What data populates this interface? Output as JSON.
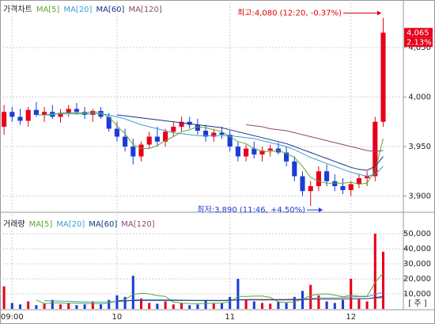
{
  "chart_data": [
    {
      "type": "candlestick",
      "title": "가격차트",
      "categories": [
        null,
        "09:00",
        null,
        null,
        null,
        null,
        null,
        null,
        null,
        null,
        null,
        null,
        null,
        null,
        "10",
        null,
        null,
        null,
        null,
        null,
        null,
        null,
        null,
        null,
        null,
        null,
        null,
        null,
        "11",
        null,
        null,
        null,
        null,
        null,
        null,
        null,
        null,
        null,
        null,
        null,
        null,
        null,
        null,
        "12",
        null,
        null,
        null,
        null,
        null,
        null
      ],
      "open": [
        3970,
        3985,
        3980,
        3976,
        3987,
        3982,
        3985,
        3980,
        3984,
        3988,
        3985,
        3982,
        3986,
        3980,
        3968,
        3960,
        3950,
        3940,
        3952,
        3960,
        3955,
        3965,
        3970,
        3975,
        3972,
        3966,
        3960,
        3964,
        3962,
        3950,
        3940,
        3948,
        3942,
        3946,
        3948,
        3944,
        3935,
        3920,
        3905,
        3910,
        3925,
        3915,
        3910,
        3906,
        3912,
        3918,
        3920,
        3975,
        null,
        null
      ],
      "high": [
        3992,
        3990,
        3988,
        3990,
        3995,
        3990,
        3992,
        3988,
        3992,
        3994,
        3990,
        3988,
        3990,
        3984,
        3975,
        3968,
        3958,
        3955,
        3965,
        3970,
        3968,
        3975,
        3980,
        3980,
        3978,
        3972,
        3968,
        3970,
        3966,
        3955,
        3952,
        3955,
        3950,
        3952,
        3954,
        3950,
        3940,
        3925,
        3915,
        3930,
        3932,
        3922,
        3918,
        3915,
        3922,
        3925,
        3980,
        4080,
        null,
        null
      ],
      "low": [
        3962,
        3975,
        3972,
        3970,
        3980,
        3975,
        3978,
        3974,
        3980,
        3982,
        3978,
        3975,
        3978,
        3965,
        3955,
        3945,
        3932,
        3935,
        3948,
        3950,
        3950,
        3960,
        3965,
        3968,
        3962,
        3955,
        3955,
        3958,
        3945,
        3935,
        3935,
        3938,
        3935,
        3940,
        3942,
        3930,
        3915,
        3900,
        3890,
        3905,
        3910,
        3905,
        3902,
        3900,
        3908,
        3910,
        3915,
        3970,
        null,
        null
      ],
      "close": [
        3985,
        3980,
        3976,
        3987,
        3982,
        3985,
        3980,
        3984,
        3988,
        3985,
        3982,
        3986,
        3980,
        3968,
        3960,
        3950,
        3940,
        3952,
        3960,
        3955,
        3965,
        3970,
        3975,
        3972,
        3966,
        3960,
        3964,
        3962,
        3950,
        3940,
        3948,
        3942,
        3946,
        3948,
        3944,
        3935,
        3920,
        3905,
        3910,
        3925,
        3915,
        3910,
        3906,
        3912,
        3918,
        3920,
        3975,
        4065,
        null,
        null
      ],
      "up_color": "#e8001c",
      "down_color": "#1a3cd8",
      "series": [
        {
          "name": "MA[5]",
          "color": "#5ba82e",
          "values": [
            null,
            null,
            null,
            null,
            3982,
            3982,
            3982,
            3984,
            3984,
            3984,
            3984,
            3985,
            3984,
            3980,
            3971,
            3963,
            3952,
            3948,
            3948,
            3951,
            3956,
            3960,
            3965,
            3967,
            3970,
            3969,
            3967,
            3965,
            3960,
            3955,
            3953,
            3948,
            3945,
            3945,
            3946,
            3943,
            3939,
            3930,
            3919,
            3915,
            3913,
            3913,
            3913,
            3914,
            3912,
            3913,
            3926,
            3958,
            null,
            null
          ]
        },
        {
          "name": "MA[20]",
          "color": "#3a9fd0",
          "values": [
            null,
            null,
            null,
            null,
            null,
            3982,
            3983,
            3983,
            3983,
            3983,
            3983,
            3983,
            3983,
            3982,
            3980,
            3978,
            3975,
            3972,
            3970,
            3968,
            3966,
            3964,
            3963,
            3962,
            3961,
            3961,
            3961,
            3961,
            3961,
            3960,
            3959,
            3958,
            3956,
            3954,
            3952,
            3950,
            3947,
            3943,
            3939,
            3936,
            3933,
            3930,
            3927,
            3924,
            3922,
            3920,
            3922,
            3930,
            null,
            null
          ]
        },
        {
          "name": "MA[60]",
          "color": "#1c2f85",
          "values": [
            null,
            null,
            null,
            null,
            null,
            null,
            null,
            null,
            null,
            null,
            null,
            null,
            null,
            null,
            3982,
            3981,
            3980,
            3979,
            3978,
            3977,
            3976,
            3975,
            3974,
            3973,
            3972,
            3971,
            3970,
            3969,
            3967,
            3965,
            3963,
            3961,
            3959,
            3957,
            3955,
            3953,
            3950,
            3947,
            3944,
            3941,
            3938,
            3935,
            3932,
            3929,
            3927,
            3926,
            3930,
            3940,
            null,
            null
          ]
        },
        {
          "name": "MA[120]",
          "color": "#8a4b6e",
          "values": [
            null,
            null,
            null,
            null,
            null,
            null,
            null,
            null,
            null,
            null,
            null,
            null,
            null,
            null,
            null,
            null,
            null,
            null,
            null,
            null,
            null,
            null,
            null,
            null,
            null,
            null,
            null,
            null,
            null,
            null,
            3972,
            3971,
            3970,
            3968,
            3967,
            3966,
            3964,
            3962,
            3960,
            3958,
            3956,
            3954,
            3952,
            3950,
            3948,
            3946,
            3945,
            3946,
            null,
            null
          ]
        }
      ],
      "ylim": [
        3886,
        4094
      ],
      "yticks": [
        {
          "value": 3900,
          "label": "3,900"
        },
        {
          "value": 3950,
          "label": "3,950"
        },
        {
          "value": 4000,
          "label": "4,000"
        },
        {
          "value": 4050,
          "label": "4,050"
        }
      ],
      "grid": true,
      "annotations": [
        {
          "text": "최고:4,080 (12:20, -0.37%)",
          "value": 4080
        },
        {
          "text": "최저:3,890 (11:46, +4.50%)",
          "value": 3890
        }
      ],
      "last_price": {
        "value": 4065,
        "label": "4,065"
      },
      "change_label": "2.13%"
    },
    {
      "type": "bar",
      "title": "거래량",
      "values": [
        15000,
        4000,
        3000,
        5000,
        2500,
        3500,
        6000,
        3000,
        4000,
        2500,
        3000,
        5000,
        3000,
        6000,
        9000,
        8000,
        22000,
        7000,
        4000,
        3500,
        5000,
        3000,
        4000,
        2500,
        3000,
        6000,
        3500,
        4000,
        8000,
        20000,
        6000,
        5000,
        4000,
        3500,
        5000,
        4000,
        8000,
        12000,
        16000,
        9000,
        5000,
        4000,
        6000,
        20000,
        7000,
        5000,
        50000,
        38000,
        null,
        null
      ],
      "series": [
        {
          "name": "MA[5]",
          "color": "#5ba82e",
          "values": [
            null,
            null,
            null,
            null,
            5900,
            3600,
            4000,
            4000,
            3800,
            3800,
            3700,
            3500,
            3500,
            3900,
            5200,
            6200,
            9600,
            10400,
            10000,
            8900,
            8300,
            4500,
            3900,
            3600,
            3500,
            3700,
            3800,
            3800,
            4900,
            8300,
            8300,
            8600,
            8600,
            7700,
            4700,
            4300,
            4900,
            6300,
            9000,
            9800,
            10000,
            9200,
            8000,
            9200,
            8400,
            8400,
            17600,
            24000,
            null,
            null
          ]
        },
        {
          "name": "MA[20]",
          "color": "#3a9fd0",
          "values": [
            null,
            null,
            null,
            null,
            null,
            5500,
            5400,
            5200,
            5100,
            4900,
            4700,
            4700,
            4600,
            4700,
            5000,
            5200,
            6000,
            6200,
            6200,
            6100,
            6100,
            6000,
            5900,
            5800,
            5600,
            5600,
            5500,
            5500,
            5600,
            6200,
            6300,
            6300,
            6300,
            6200,
            6200,
            6200,
            6300,
            6600,
            7000,
            7300,
            7300,
            7300,
            7400,
            8000,
            8100,
            8100,
            9700,
            11200,
            null,
            null
          ]
        },
        {
          "name": "MA[60]",
          "color": "#1c2f85",
          "values": [
            null,
            null,
            null,
            null,
            null,
            null,
            null,
            null,
            null,
            null,
            null,
            null,
            null,
            null,
            5200,
            5300,
            5600,
            5700,
            5700,
            5700,
            5700,
            5700,
            5700,
            5700,
            5700,
            5700,
            5700,
            5700,
            5800,
            6000,
            6000,
            6000,
            6000,
            6000,
            6000,
            6000,
            6100,
            6200,
            6400,
            6500,
            6500,
            6500,
            6500,
            6700,
            6800,
            6800,
            7600,
            8200,
            null,
            null
          ]
        },
        {
          "name": "MA[120]",
          "color": "#8a4b6e",
          "values": [
            null,
            null,
            null,
            null,
            null,
            null,
            null,
            null,
            null,
            null,
            null,
            null,
            null,
            null,
            null,
            null,
            null,
            null,
            null,
            null,
            null,
            null,
            null,
            null,
            null,
            null,
            null,
            null,
            null,
            null,
            6300,
            6300,
            6300,
            6300,
            6300,
            6300,
            6400,
            6400,
            6500,
            6600,
            6600,
            6600,
            6600,
            6700,
            6800,
            6800,
            7200,
            7600,
            null,
            null
          ]
        }
      ],
      "ylim": [
        0,
        60000
      ],
      "yticks": [
        {
          "value": 10000,
          "label": "10,000"
        },
        {
          "value": 20000,
          "label": "20,000"
        },
        {
          "value": 30000,
          "label": "30,000"
        },
        {
          "value": 40000,
          "label": "40,000"
        },
        {
          "value": 50000,
          "label": "50,000"
        }
      ],
      "y_unit": "[ 주 ]",
      "grid": true
    }
  ]
}
